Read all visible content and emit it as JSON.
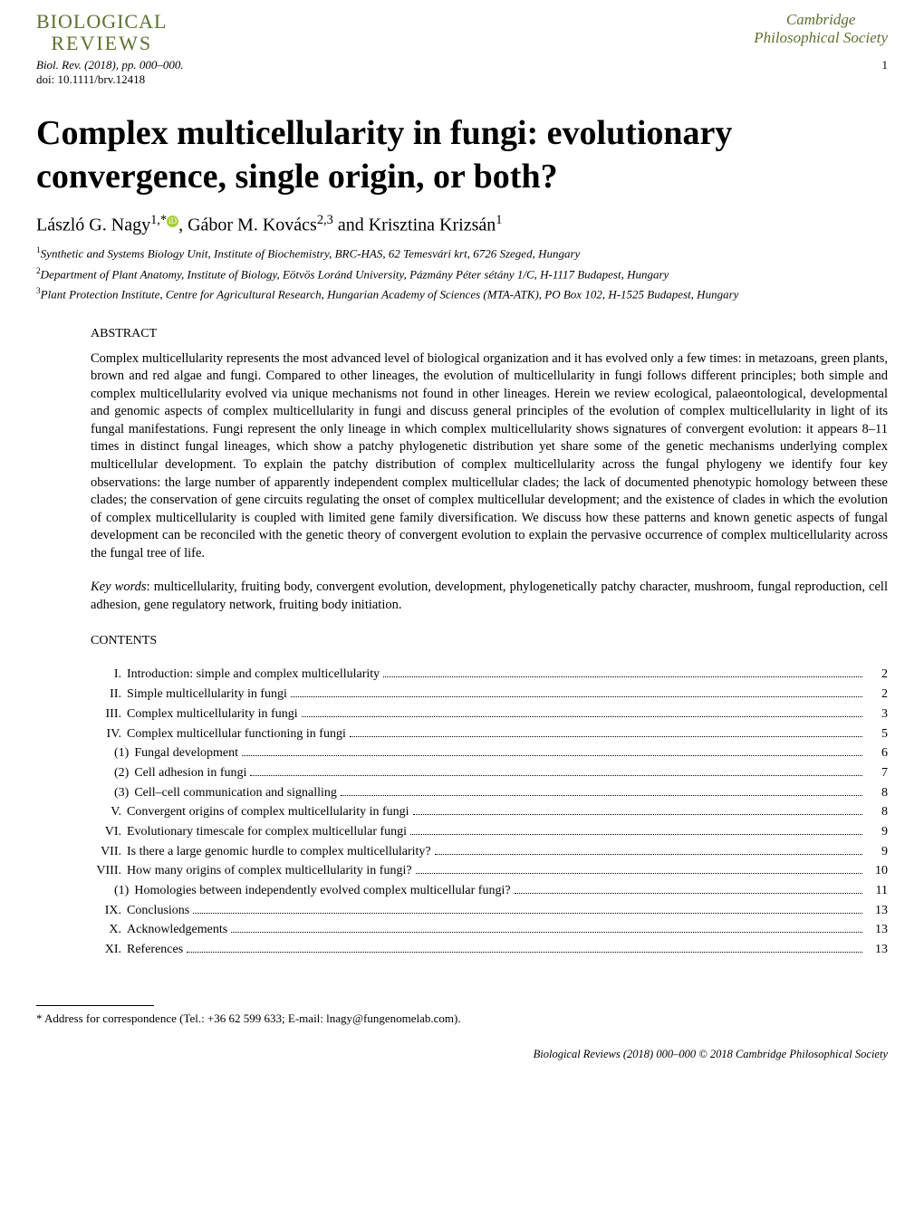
{
  "colors": {
    "brand_green": "#5b7030",
    "orcid_green": "#a6ce39",
    "text": "#000000",
    "bg": "#ffffff"
  },
  "header": {
    "journal_logo_line1": "BIOLOGICAL",
    "journal_logo_line2": "REVIEWS",
    "society_line1": "Cambridge",
    "society_line2": "Philosophical Society",
    "citation": "Biol. Rev. (2018), pp. 000–000.",
    "doi": "doi: 10.1111/brv.12418",
    "page_number": "1"
  },
  "title": "Complex multicellularity in fungi: evolutionary convergence, single origin, or both?",
  "authors": {
    "a1_name": "László G. Nagy",
    "a1_sup": "1,*",
    "a2_name": "Gábor M. Kovács",
    "a2_sup": "2,3",
    "a3_name": "Krisztina Krizsán",
    "a3_sup": "1",
    "separator1": ", ",
    "separator2": " and "
  },
  "affiliations": {
    "a1_sup": "1",
    "a1_text": "Synthetic and Systems Biology Unit, Institute of Biochemistry, BRC-HAS, 62 Temesvári krt, 6726 Szeged, Hungary",
    "a2_sup": "2",
    "a2_text": "Department of Plant Anatomy, Institute of Biology, Eötvös Loránd University, Pázmány Péter sétány 1/C, H-1117 Budapest, Hungary",
    "a3_sup": "3",
    "a3_text": "Plant Protection Institute, Centre for Agricultural Research, Hungarian Academy of Sciences (MTA-ATK), PO Box 102, H-1525 Budapest, Hungary"
  },
  "abstract": {
    "label": "ABSTRACT",
    "body": "Complex multicellularity represents the most advanced level of biological organization and it has evolved only a few times: in metazoans, green plants, brown and red algae and fungi. Compared to other lineages, the evolution of multicellularity in fungi follows different principles; both simple and complex multicellularity evolved via unique mechanisms not found in other lineages. Herein we review ecological, palaeontological, developmental and genomic aspects of complex multicellularity in fungi and discuss general principles of the evolution of complex multicellularity in light of its fungal manifestations. Fungi represent the only lineage in which complex multicellularity shows signatures of convergent evolution: it appears 8–11 times in distinct fungal lineages, which show a patchy phylogenetic distribution yet share some of the genetic mechanisms underlying complex multicellular development. To explain the patchy distribution of complex multicellularity across the fungal phylogeny we identify four key observations: the large number of apparently independent complex multicellular clades; the lack of documented phenotypic homology between these clades; the conservation of gene circuits regulating the onset of complex multicellular development; and the existence of clades in which the evolution of complex multicellularity is coupled with limited gene family diversification. We discuss how these patterns and known genetic aspects of fungal development can be reconciled with the genetic theory of convergent evolution to explain the pervasive occurrence of complex multicellularity across the fungal tree of life."
  },
  "keywords": {
    "label": "Key words",
    "text": ": multicellularity, fruiting body, convergent evolution, development, phylogenetically patchy character, mushroom, fungal reproduction, cell adhesion, gene regulatory network, fruiting body initiation."
  },
  "contents": {
    "label": "CONTENTS",
    "items": [
      {
        "num": "I.",
        "text": "Introduction: simple and complex multicellularity",
        "page": "2",
        "indent": 0
      },
      {
        "num": "II.",
        "text": "Simple multicellularity in fungi",
        "page": "2",
        "indent": 0
      },
      {
        "num": "III.",
        "text": "Complex multicellularity in fungi",
        "page": "3",
        "indent": 0
      },
      {
        "num": "IV.",
        "text": "Complex multicellular functioning in fungi",
        "page": "5",
        "indent": 0
      },
      {
        "num": "(1)",
        "text": "Fungal development",
        "page": "6",
        "indent": 1
      },
      {
        "num": "(2)",
        "text": "Cell adhesion in fungi",
        "page": "7",
        "indent": 1
      },
      {
        "num": "(3)",
        "text": "Cell–cell communication and signalling",
        "page": "8",
        "indent": 1
      },
      {
        "num": "V.",
        "text": "Convergent origins of complex multicellularity in fungi",
        "page": "8",
        "indent": 0
      },
      {
        "num": "VI.",
        "text": "Evolutionary timescale for complex multicellular fungi",
        "page": "9",
        "indent": 0
      },
      {
        "num": "VII.",
        "text": "Is there a large genomic hurdle to complex multicellularity?",
        "page": "9",
        "indent": 0
      },
      {
        "num": "VIII.",
        "text": "How many origins of complex multicellularity in fungi?",
        "page": "10",
        "indent": 0
      },
      {
        "num": "(1)",
        "text": "Homologies between independently evolved complex multicellular fungi?",
        "page": "11",
        "indent": 1
      },
      {
        "num": "IX.",
        "text": "Conclusions",
        "page": "13",
        "indent": 0
      },
      {
        "num": "X.",
        "text": "Acknowledgements",
        "page": "13",
        "indent": 0
      },
      {
        "num": "XI.",
        "text": "References",
        "page": "13",
        "indent": 0
      }
    ]
  },
  "footnote": {
    "marker": "*",
    "text": " Address for correspondence (Tel.: +36 62 599 633; E-mail: lnagy@fungenomelab.com)."
  },
  "footer": "Biological Reviews (2018) 000–000 © 2018 Cambridge Philosophical Society"
}
